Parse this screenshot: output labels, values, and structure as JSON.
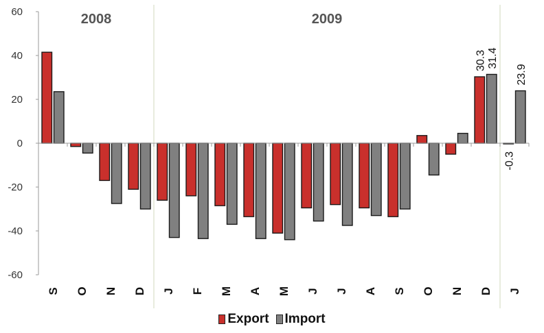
{
  "chart_data": {
    "type": "bar",
    "categories": [
      "S",
      "O",
      "N",
      "D",
      "J",
      "F",
      "M",
      "A",
      "M",
      "J",
      "J",
      "A",
      "S",
      "O",
      "N",
      "D",
      "J"
    ],
    "year_labels": [
      "2008",
      "2009"
    ],
    "series": [
      {
        "name": "Export",
        "color": "#c9302c",
        "values": [
          41.5,
          -1.5,
          -17,
          -21,
          -26,
          -24,
          -28.5,
          -33.5,
          -41,
          -29.5,
          -28,
          -29.5,
          -33.5,
          3.5,
          -5,
          30.3,
          -0.3
        ]
      },
      {
        "name": "Import",
        "color": "#808080",
        "values": [
          23.5,
          -4.5,
          -27.5,
          -30,
          -43,
          -43.5,
          -37,
          -43.5,
          -44,
          -35.5,
          -37.5,
          -33,
          -30,
          -14.5,
          4.5,
          31.4,
          23.9
        ]
      }
    ],
    "yticks": [
      60,
      40,
      20,
      0,
      -20,
      -40,
      -60
    ],
    "ylim": [
      -60,
      60
    ],
    "data_labels": [
      {
        "series": 0,
        "index": 15,
        "text": "30.3"
      },
      {
        "series": 1,
        "index": 15,
        "text": "31.4"
      },
      {
        "series": 0,
        "index": 16,
        "text": "-0.3"
      },
      {
        "series": 1,
        "index": 16,
        "text": "23.9"
      }
    ],
    "separators_after": [
      3,
      15
    ],
    "legend_position": "bottom",
    "grid": false
  }
}
